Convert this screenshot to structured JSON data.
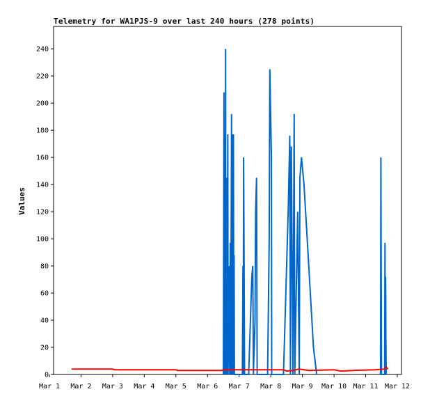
{
  "chart_data": {
    "type": "line",
    "title": "Telemetry for WA1PJS-9 over last 240 hours (278 points)",
    "xlabel": "",
    "ylabel": "Values",
    "x_unit": "days since Mar 1",
    "x_ticks": [
      "Mar 1",
      "Mar 2",
      "Mar 3",
      "Mar 4",
      "Mar 5",
      "Mar 6",
      "Mar 7",
      "Mar 8",
      "Mar 9",
      "Mar 10",
      "Mar 11",
      "Mar 12"
    ],
    "y_ticks": [
      0,
      20,
      40,
      60,
      80,
      100,
      120,
      140,
      160,
      180,
      200,
      220,
      240
    ],
    "xlim": [
      0,
      11
    ],
    "ylim": [
      0,
      256
    ],
    "grid": false,
    "legend": "none",
    "series": [
      {
        "color": "#0066cc",
        "points": [
          [
            5.5,
            0
          ],
          [
            5.52,
            208
          ],
          [
            5.53,
            0
          ],
          [
            5.55,
            177
          ],
          [
            5.56,
            0
          ],
          [
            5.57,
            240
          ],
          [
            5.58,
            0
          ],
          [
            5.6,
            145
          ],
          [
            5.62,
            0
          ],
          [
            5.64,
            177
          ],
          [
            5.65,
            0
          ],
          [
            5.68,
            80
          ],
          [
            5.7,
            0
          ],
          [
            5.72,
            97
          ],
          [
            5.73,
            0
          ],
          [
            5.76,
            192
          ],
          [
            5.77,
            0
          ],
          [
            5.79,
            177
          ],
          [
            5.8,
            0
          ],
          [
            5.82,
            177
          ],
          [
            5.83,
            0
          ],
          [
            5.84,
            88
          ],
          [
            5.85,
            0
          ],
          [
            6.1,
            0
          ],
          [
            6.12,
            80
          ],
          [
            6.13,
            0
          ],
          [
            6.14,
            160
          ],
          [
            6.15,
            120
          ],
          [
            6.17,
            0
          ],
          [
            6.3,
            0
          ],
          [
            6.4,
            72
          ],
          [
            6.43,
            80
          ],
          [
            6.45,
            0
          ],
          [
            6.5,
            40
          ],
          [
            6.52,
            120
          ],
          [
            6.55,
            145
          ],
          [
            6.57,
            0
          ],
          [
            6.58,
            0
          ],
          [
            6.9,
            0
          ],
          [
            6.95,
            100
          ],
          [
            6.97,
            225
          ],
          [
            7.0,
            185
          ],
          [
            7.02,
            160
          ],
          [
            7.03,
            0
          ],
          [
            7.4,
            0
          ],
          [
            7.55,
            120
          ],
          [
            7.6,
            176
          ],
          [
            7.62,
            0
          ],
          [
            7.65,
            168
          ],
          [
            7.7,
            0
          ],
          [
            7.74,
            192
          ],
          [
            7.76,
            0
          ],
          [
            7.85,
            120
          ],
          [
            7.9,
            0
          ],
          [
            7.92,
            145
          ],
          [
            7.97,
            160
          ],
          [
            8.05,
            140
          ],
          [
            8.15,
            100
          ],
          [
            8.25,
            60
          ],
          [
            8.35,
            20
          ],
          [
            8.45,
            0
          ]
        ]
      },
      {
        "color": "#0066cc",
        "points": [
          [
            10.47,
            0
          ],
          [
            10.48,
            160
          ],
          [
            10.49,
            80
          ],
          [
            10.5,
            0
          ],
          [
            10.6,
            0
          ],
          [
            10.61,
            97
          ],
          [
            10.62,
            0
          ],
          [
            10.63,
            72
          ],
          [
            10.64,
            25
          ],
          [
            10.65,
            0
          ]
        ]
      },
      {
        "color": "#ff0000",
        "points": [
          [
            0.7,
            4
          ],
          [
            2.0,
            4
          ],
          [
            2.05,
            3.5
          ],
          [
            4.0,
            3.5
          ],
          [
            4.05,
            3
          ],
          [
            5.45,
            3
          ],
          [
            5.5,
            3.5
          ],
          [
            7.4,
            3.5
          ],
          [
            7.5,
            2.5
          ],
          [
            7.7,
            3
          ],
          [
            7.9,
            4
          ],
          [
            8.2,
            3
          ],
          [
            9.0,
            3.5
          ],
          [
            9.2,
            2.5
          ],
          [
            9.6,
            3
          ],
          [
            10.3,
            3.5
          ],
          [
            10.6,
            4
          ],
          [
            10.65,
            5.5
          ],
          [
            10.7,
            4
          ]
        ]
      }
    ]
  }
}
